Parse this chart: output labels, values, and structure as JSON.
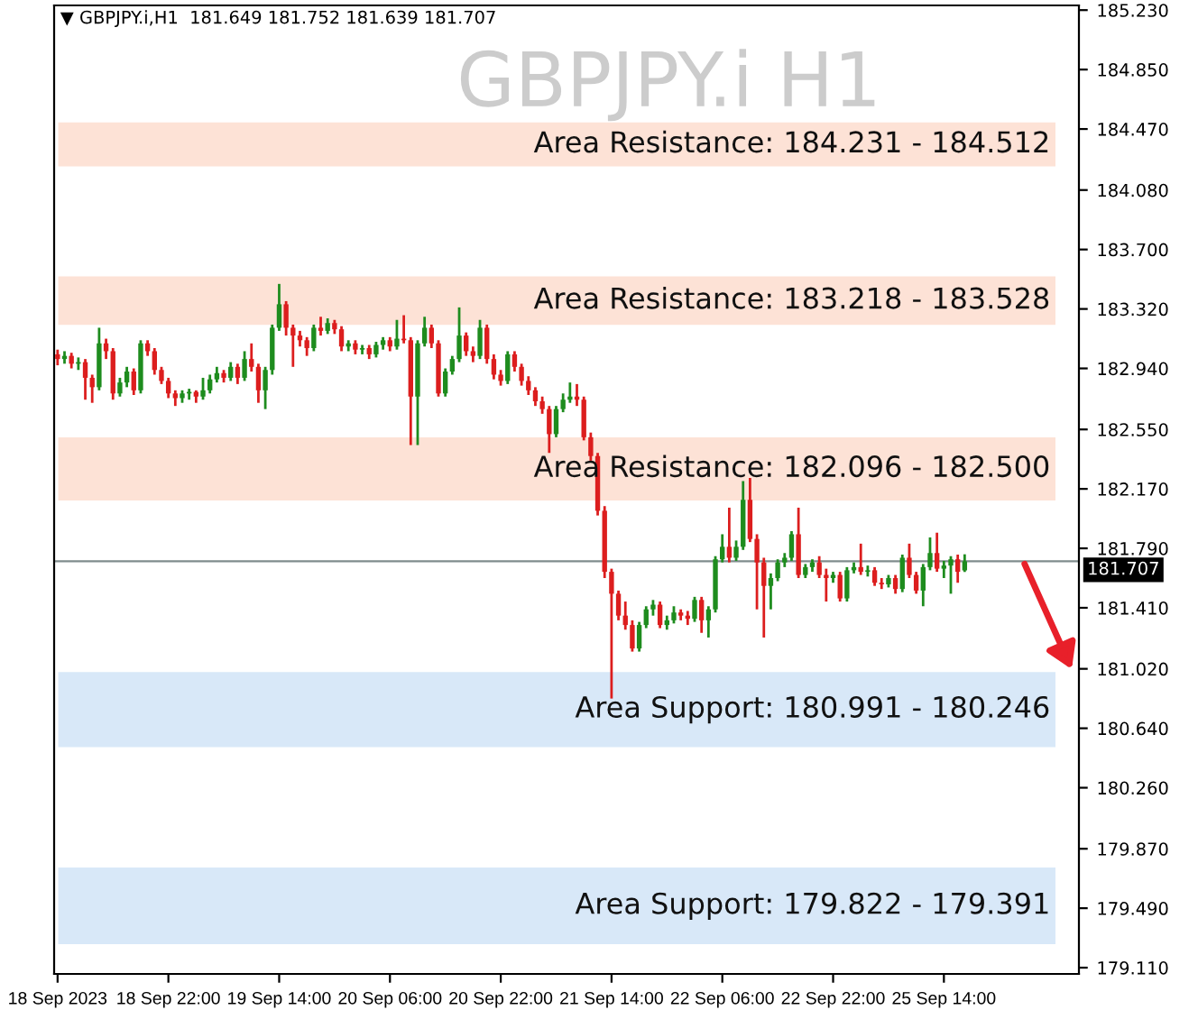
{
  "chart_data": {
    "type": "candlestick",
    "title": "GBPJPY.i H1",
    "annotations": [
      "▼ GBPJPY.i,H1  181.649 181.752 181.639 181.707"
    ],
    "categories": [
      "18 Sep 2023",
      null,
      null,
      null,
      null,
      null,
      null,
      null,
      null,
      null,
      null,
      null,
      null,
      null,
      null,
      null,
      "18 Sep 22:00",
      null,
      null,
      null,
      null,
      null,
      null,
      null,
      null,
      null,
      null,
      null,
      null,
      null,
      null,
      null,
      "19 Sep 14:00",
      null,
      null,
      null,
      null,
      null,
      null,
      null,
      null,
      null,
      null,
      null,
      null,
      null,
      null,
      null,
      "20 Sep 06:00",
      null,
      null,
      null,
      null,
      null,
      null,
      null,
      null,
      null,
      null,
      null,
      null,
      null,
      null,
      null,
      "20 Sep 22:00",
      null,
      null,
      null,
      null,
      null,
      null,
      null,
      null,
      null,
      null,
      null,
      null,
      null,
      null,
      null,
      "21 Sep 14:00",
      null,
      null,
      null,
      null,
      null,
      null,
      null,
      null,
      null,
      null,
      null,
      null,
      null,
      null,
      null,
      "22 Sep 06:00",
      null,
      null,
      null,
      null,
      null,
      null,
      null,
      null,
      null,
      null,
      null,
      null,
      null,
      null,
      null,
      "22 Sep 22:00",
      null,
      null,
      null,
      null,
      null,
      null,
      null,
      null,
      null,
      null,
      null,
      null,
      null,
      null,
      null,
      "25 Sep 14:00",
      null,
      null,
      null,
      null,
      null,
      null,
      null,
      null,
      null,
      null,
      null,
      null,
      null,
      null,
      null,
      null,
      null,
      null,
      null
    ],
    "colors": [
      "#dc1e1e",
      "#1e8c1e",
      "#dc1e1e",
      "#1e8c1e",
      "#dc1e1e",
      "#dc1e1e",
      "#1e8c1e",
      "#dc1e1e",
      "#dc1e1e",
      "#1e8c1e",
      "#1e8c1e",
      "#dc1e1e",
      "#1e8c1e",
      "#dc1e1e",
      "#dc1e1e",
      "#dc1e1e",
      "#dc1e1e",
      "#dc1e1e",
      "#1e8c1e",
      "#1e8c1e",
      "#dc1e1e",
      "#1e8c1e",
      "#1e8c1e",
      "#1e8c1e",
      "#dc1e1e",
      "#1e8c1e",
      "#dc1e1e",
      "#1e8c1e",
      "#dc1e1e",
      "#dc1e1e",
      "#1e8c1e",
      "#1e8c1e",
      "#1e8c1e",
      "#dc1e1e",
      "#dc1e1e",
      "#dc1e1e",
      "#dc1e1e",
      "#1e8c1e",
      "#dc1e1e",
      "#1e8c1e",
      "#dc1e1e",
      "#dc1e1e",
      "#1e8c1e",
      "#dc1e1e",
      "#1e8c1e",
      "#dc1e1e",
      "#1e8c1e",
      "#1e8c1e",
      "#dc1e1e",
      "#1e8c1e",
      "#dc1e1e",
      "#dc1e1e",
      "#1e8c1e",
      "#1e8c1e",
      "#dc1e1e",
      "#dc1e1e",
      "#1e8c1e",
      "#1e8c1e",
      "#1e8c1e",
      "#dc1e1e",
      "#dc1e1e",
      "#1e8c1e",
      "#dc1e1e",
      "#dc1e1e",
      "#dc1e1e",
      "#1e8c1e",
      "#dc1e1e",
      "#dc1e1e",
      "#dc1e1e",
      "#dc1e1e",
      "#dc1e1e",
      "#dc1e1e",
      "#1e8c1e",
      "#1e8c1e",
      "#1e8c1e",
      "#dc1e1e",
      "#dc1e1e",
      "#dc1e1e",
      "#dc1e1e",
      "#dc1e1e",
      "#dc1e1e",
      "#dc1e1e",
      "#dc1e1e",
      "#dc1e1e",
      "#1e8c1e",
      "#1e8c1e",
      "#1e8c1e",
      "#dc1e1e",
      "#1e8c1e",
      "#1e8c1e",
      "#dc1e1e",
      "#dc1e1e",
      "#1e8c1e",
      "#dc1e1e",
      "#1e8c1e",
      "#1e8c1e",
      "#1e8c1e",
      "#dc1e1e",
      "#1e8c1e",
      "#1e8c1e",
      "#dc1e1e",
      "#dc1e1e",
      "#dc1e1e",
      "#1e8c1e",
      "#1e8c1e",
      "#1e8c1e",
      "#1e8c1e",
      "#dc1e1e",
      "#1e8c1e",
      "#1e8c1e",
      "#dc1e1e",
      "#dc1e1e",
      "#1e8c1e",
      "#dc1e1e",
      "#1e8c1e",
      "#1e8c1e",
      "#dc1e1e",
      "#1e8c1e",
      "#dc1e1e",
      "#dc1e1e",
      "#1e8c1e",
      "#dc1e1e",
      "#1e8c1e",
      "#dc1e1e",
      "#dc1e1e",
      "#1e8c1e",
      "#1e8c1e",
      "#dc1e1e",
      "#1e8c1e",
      "#1e8c1e",
      "#dc1e1e",
      "#1e8c1e",
      null,
      null,
      null,
      null,
      null,
      null,
      null,
      null,
      null,
      null,
      null,
      null,
      null,
      null,
      null,
      null
    ],
    "ohlc": [
      [
        183.03,
        183.06,
        182.96,
        183.0
      ],
      [
        183.0,
        183.05,
        182.97,
        183.02
      ],
      [
        183.02,
        183.04,
        182.94,
        182.97
      ],
      [
        182.97,
        183.01,
        182.93,
        182.98
      ],
      [
        182.98,
        183.0,
        182.74,
        182.88
      ],
      [
        182.88,
        182.9,
        182.72,
        182.82
      ],
      [
        182.82,
        183.2,
        182.8,
        183.1
      ],
      [
        183.1,
        183.13,
        183.0,
        183.05
      ],
      [
        183.05,
        183.07,
        182.74,
        182.78
      ],
      [
        182.78,
        182.88,
        182.76,
        182.85
      ],
      [
        182.85,
        182.95,
        182.82,
        182.92
      ],
      [
        182.92,
        182.94,
        182.77,
        182.8
      ],
      [
        182.8,
        183.12,
        182.78,
        183.1
      ],
      [
        183.1,
        183.12,
        183.02,
        183.05
      ],
      [
        183.05,
        183.07,
        182.9,
        182.93
      ],
      [
        182.93,
        182.95,
        182.84,
        182.86
      ],
      [
        182.86,
        182.88,
        182.75,
        182.78
      ],
      [
        182.78,
        182.8,
        182.7,
        182.75
      ],
      [
        182.75,
        182.8,
        182.72,
        182.78
      ],
      [
        182.78,
        182.81,
        182.74,
        182.79
      ],
      [
        182.79,
        182.8,
        182.72,
        182.76
      ],
      [
        182.76,
        182.88,
        182.74,
        182.8
      ],
      [
        182.8,
        182.9,
        182.78,
        182.87
      ],
      [
        182.87,
        182.95,
        182.85,
        182.91
      ],
      [
        182.91,
        182.93,
        182.85,
        182.88
      ],
      [
        182.88,
        182.98,
        182.86,
        182.95
      ],
      [
        182.95,
        182.97,
        182.84,
        182.88
      ],
      [
        182.88,
        183.05,
        182.86,
        183.0
      ],
      [
        183.0,
        183.1,
        182.92,
        182.95
      ],
      [
        182.95,
        182.97,
        182.72,
        182.8
      ],
      [
        182.8,
        182.95,
        182.68,
        182.93
      ],
      [
        182.93,
        183.22,
        182.9,
        183.2
      ],
      [
        183.2,
        183.48,
        183.18,
        183.35
      ],
      [
        183.35,
        183.37,
        183.15,
        183.2
      ],
      [
        183.2,
        183.22,
        182.95,
        183.15
      ],
      [
        183.15,
        183.18,
        183.08,
        183.12
      ],
      [
        183.12,
        183.14,
        183.02,
        183.07
      ],
      [
        183.07,
        183.22,
        183.05,
        183.2
      ],
      [
        183.2,
        183.27,
        183.15,
        183.18
      ],
      [
        183.18,
        183.26,
        183.16,
        183.23
      ],
      [
        183.23,
        183.25,
        183.16,
        183.19
      ],
      [
        183.19,
        183.21,
        183.05,
        183.08
      ],
      [
        183.08,
        183.12,
        183.05,
        183.1
      ],
      [
        183.1,
        183.12,
        183.03,
        183.06
      ],
      [
        183.06,
        183.09,
        183.03,
        183.07
      ],
      [
        183.07,
        183.09,
        183.0,
        183.03
      ],
      [
        183.03,
        183.11,
        183.01,
        183.09
      ],
      [
        183.09,
        183.14,
        183.06,
        183.12
      ],
      [
        183.12,
        183.14,
        183.05,
        183.08
      ],
      [
        183.08,
        183.25,
        183.06,
        183.13
      ],
      [
        183.13,
        183.28,
        183.1,
        183.12
      ],
      [
        183.12,
        183.14,
        182.45,
        182.76
      ],
      [
        182.76,
        183.12,
        182.45,
        183.1
      ],
      [
        183.1,
        183.27,
        183.08,
        183.2
      ],
      [
        183.2,
        183.22,
        183.07,
        183.1
      ],
      [
        183.1,
        183.12,
        182.76,
        182.78
      ],
      [
        182.78,
        182.94,
        182.76,
        182.92
      ],
      [
        182.92,
        183.02,
        182.9,
        183.0
      ],
      [
        183.0,
        183.33,
        182.98,
        183.15
      ],
      [
        183.15,
        183.17,
        183.02,
        183.05
      ],
      [
        183.05,
        183.08,
        182.98,
        183.02
      ],
      [
        183.02,
        183.25,
        183.0,
        183.2
      ],
      [
        183.2,
        183.22,
        182.97,
        183.0
      ],
      [
        183.0,
        183.03,
        182.87,
        182.9
      ],
      [
        182.9,
        182.93,
        182.83,
        182.86
      ],
      [
        182.86,
        183.05,
        182.84,
        183.03
      ],
      [
        183.03,
        183.05,
        182.92,
        182.95
      ],
      [
        182.95,
        182.97,
        182.83,
        182.86
      ],
      [
        182.86,
        182.89,
        182.77,
        182.8
      ],
      [
        182.8,
        182.82,
        182.7,
        182.73
      ],
      [
        182.73,
        182.76,
        182.65,
        182.68
      ],
      [
        182.68,
        182.7,
        182.4,
        182.52
      ],
      [
        182.52,
        182.7,
        182.5,
        182.68
      ],
      [
        182.68,
        182.78,
        182.66,
        182.74
      ],
      [
        182.74,
        182.85,
        182.72,
        182.76
      ],
      [
        182.76,
        182.84,
        182.7,
        182.74
      ],
      [
        182.74,
        182.76,
        182.48,
        182.5
      ],
      [
        182.5,
        182.53,
        182.35,
        182.38
      ],
      [
        182.38,
        182.4,
        182.0,
        182.03
      ],
      [
        182.03,
        182.06,
        181.6,
        181.64
      ],
      [
        181.64,
        181.66,
        180.83,
        181.5
      ],
      [
        181.5,
        181.52,
        181.33,
        181.36
      ],
      [
        181.36,
        181.45,
        181.27,
        181.3
      ],
      [
        181.3,
        181.33,
        181.13,
        181.15
      ],
      [
        181.15,
        181.32,
        181.13,
        181.3
      ],
      [
        181.3,
        181.42,
        181.28,
        181.4
      ],
      [
        181.4,
        181.46,
        181.36,
        181.43
      ],
      [
        181.43,
        181.45,
        181.28,
        181.3
      ],
      [
        181.3,
        181.36,
        181.27,
        181.33
      ],
      [
        181.33,
        181.42,
        181.31,
        181.38
      ],
      [
        181.38,
        181.4,
        181.33,
        181.36
      ],
      [
        181.36,
        181.39,
        181.3,
        181.34
      ],
      [
        181.34,
        181.48,
        181.32,
        181.46
      ],
      [
        181.46,
        181.48,
        181.25,
        181.33
      ],
      [
        181.33,
        181.42,
        181.22,
        181.4
      ],
      [
        181.4,
        181.74,
        181.38,
        181.72
      ],
      [
        181.72,
        181.88,
        181.7,
        181.8
      ],
      [
        181.8,
        182.05,
        181.7,
        181.73
      ],
      [
        181.73,
        181.84,
        181.71,
        181.8
      ],
      [
        181.8,
        182.22,
        181.78,
        182.1
      ],
      [
        182.1,
        182.24,
        181.83,
        181.85
      ],
      [
        181.85,
        181.88,
        181.4,
        181.7
      ],
      [
        181.7,
        181.73,
        181.22,
        181.55
      ],
      [
        181.55,
        181.63,
        181.4,
        181.6
      ],
      [
        181.6,
        181.72,
        181.58,
        181.7
      ],
      [
        181.7,
        181.76,
        181.67,
        181.73
      ],
      [
        181.73,
        181.9,
        181.71,
        181.88
      ],
      [
        181.88,
        182.05,
        181.6,
        181.62
      ],
      [
        181.62,
        181.69,
        181.6,
        181.67
      ],
      [
        181.67,
        181.72,
        181.64,
        181.7
      ],
      [
        181.7,
        181.74,
        181.6,
        181.62
      ],
      [
        181.62,
        181.66,
        181.45,
        181.6
      ],
      [
        181.6,
        181.64,
        181.57,
        181.62
      ],
      [
        181.62,
        181.64,
        181.45,
        181.47
      ],
      [
        181.47,
        181.67,
        181.45,
        181.65
      ],
      [
        181.65,
        181.7,
        181.63,
        181.67
      ],
      [
        181.67,
        181.82,
        181.62,
        181.64
      ],
      [
        181.64,
        181.68,
        181.61,
        181.65
      ],
      [
        181.65,
        181.67,
        181.55,
        181.57
      ],
      [
        181.57,
        181.6,
        181.53,
        181.56
      ],
      [
        181.56,
        181.62,
        181.54,
        181.6
      ],
      [
        181.6,
        181.62,
        181.5,
        181.53
      ],
      [
        181.53,
        181.75,
        181.51,
        181.73
      ],
      [
        181.73,
        181.82,
        181.6,
        181.62
      ],
      [
        181.62,
        181.64,
        181.5,
        181.52
      ],
      [
        181.52,
        181.69,
        181.42,
        181.67
      ],
      [
        181.67,
        181.86,
        181.65,
        181.76
      ],
      [
        181.76,
        181.89,
        181.64,
        181.66
      ],
      [
        181.66,
        181.71,
        181.6,
        181.68
      ],
      [
        181.68,
        181.74,
        181.5,
        181.72
      ],
      [
        181.72,
        181.75,
        181.57,
        181.64
      ],
      [
        181.649,
        181.752,
        181.639,
        181.707
      ],
      null,
      null,
      null,
      null,
      null,
      null,
      null,
      null,
      null,
      null,
      null,
      null,
      null,
      null,
      null,
      null
    ],
    "ylim": [
      179.07,
      185.26
    ],
    "yticks": [
      {
        "value": 185.23,
        "label": "185.230"
      },
      {
        "value": 184.85,
        "label": "184.850"
      },
      {
        "value": 184.47,
        "label": "184.470"
      },
      {
        "value": 184.08,
        "label": "184.080"
      },
      {
        "value": 183.7,
        "label": "183.700"
      },
      {
        "value": 183.32,
        "label": "183.320"
      },
      {
        "value": 182.94,
        "label": "182.940"
      },
      {
        "value": 182.55,
        "label": "182.550"
      },
      {
        "value": 182.17,
        "label": "182.170"
      },
      {
        "value": 181.79,
        "label": "181.790"
      },
      {
        "value": 181.41,
        "label": "181.410"
      },
      {
        "value": 181.02,
        "label": "181.020"
      },
      {
        "value": 180.64,
        "label": "180.640"
      },
      {
        "value": 180.26,
        "label": "180.260"
      },
      {
        "value": 179.87,
        "label": "179.870"
      },
      {
        "value": 179.49,
        "label": "179.490"
      },
      {
        "value": 179.11,
        "label": "179.110"
      }
    ],
    "ref_lines": [
      {
        "axis": "y",
        "value": 181.707,
        "label": "181.707",
        "color": "#7f8c8d"
      }
    ],
    "bands": [
      {
        "axis": "y",
        "from": 184.231,
        "to": 184.512,
        "label": "Area Resistance: 184.231 - 184.512",
        "color": "#fde2d6"
      },
      {
        "axis": "y",
        "from": 183.218,
        "to": 183.528,
        "label": "Area Resistance: 183.218 - 183.528",
        "color": "#fde2d6"
      },
      {
        "axis": "y",
        "from": 182.096,
        "to": 182.5,
        "label": "Area Resistance: 182.096 - 182.500",
        "color": "#fde2d6"
      },
      {
        "axis": "y",
        "from": 180.52,
        "to": 181.0,
        "label": "Area Support: 180.991 - 180.246",
        "color": "#d8e8f8"
      },
      {
        "axis": "y",
        "from": 179.26,
        "to": 179.75,
        "label": "Area Support: 179.822 - 179.391",
        "color": "#d8e8f8"
      }
    ]
  }
}
